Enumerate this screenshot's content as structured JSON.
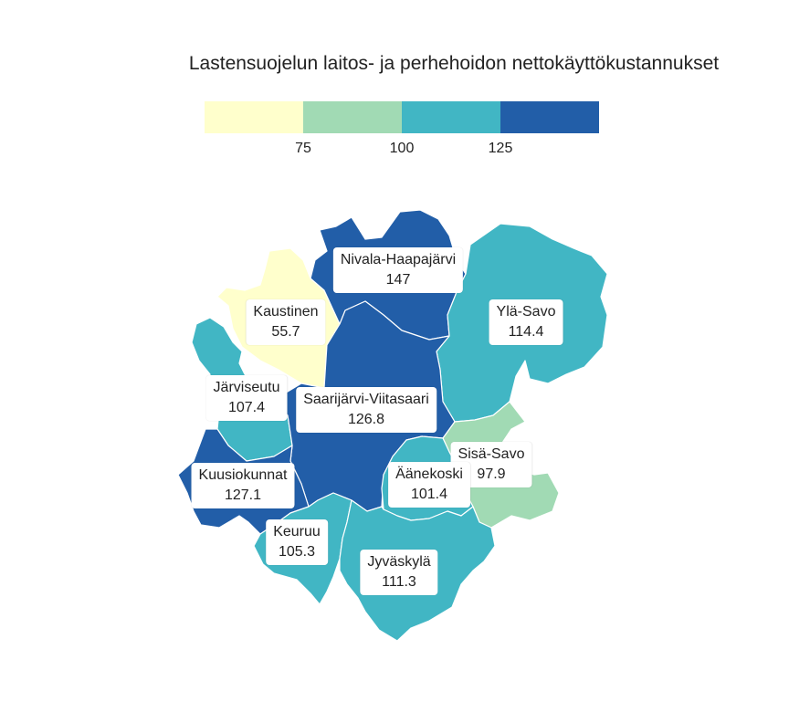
{
  "title": "Lastensuojelun laitos- ja perhehoidon nettokäyttökustannukset",
  "legend": {
    "colors": [
      "#ffffcc",
      "#a1dab4",
      "#41b6c4",
      "#225ea8"
    ],
    "ticks": [
      "75",
      "100",
      "125"
    ]
  },
  "regions": [
    {
      "name": "Nivala-Haapajärvi",
      "value": "147",
      "color": "#225ea8"
    },
    {
      "name": "Kaustinen",
      "value": "55.7",
      "color": "#ffffcc"
    },
    {
      "name": "Ylä-Savo",
      "value": "114.4",
      "color": "#41b6c4"
    },
    {
      "name": "Järviseutu",
      "value": "107.4",
      "color": "#41b6c4"
    },
    {
      "name": "Saarijärvi-Viitasaari",
      "value": "126.8",
      "color": "#225ea8"
    },
    {
      "name": "Sisä-Savo",
      "value": "97.9",
      "color": "#a1dab4"
    },
    {
      "name": "Kuusiokunnat",
      "value": "127.1",
      "color": "#225ea8"
    },
    {
      "name": "Äänekoski",
      "value": "101.4",
      "color": "#41b6c4"
    },
    {
      "name": "Keuruu",
      "value": "105.3",
      "color": "#41b6c4"
    },
    {
      "name": "Jyväskylä",
      "value": "111.3",
      "color": "#41b6c4"
    }
  ]
}
